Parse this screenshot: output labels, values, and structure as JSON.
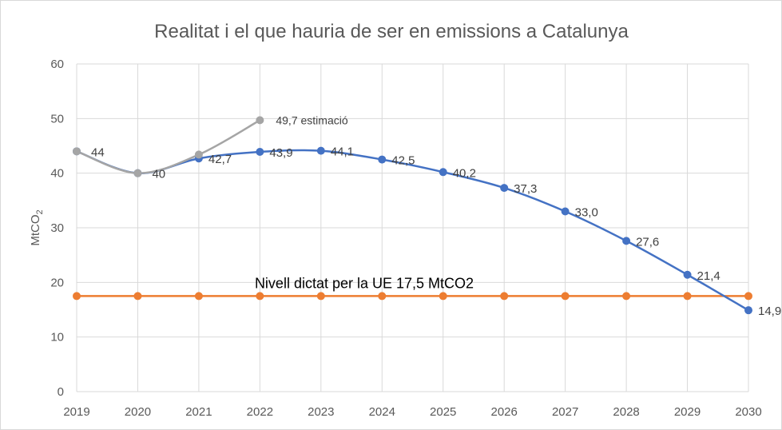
{
  "chart_data": {
    "type": "line",
    "title": "Realitat i el que hauria de ser en emissions a Catalunya",
    "ylabel": "MtCO",
    "ylabel_subscript": "2",
    "xlabel": "",
    "ylim": [
      0,
      60
    ],
    "yticks": [
      0,
      10,
      20,
      30,
      40,
      50,
      60
    ],
    "x": [
      2019,
      2020,
      2021,
      2022,
      2023,
      2024,
      2025,
      2026,
      2027,
      2028,
      2029,
      2030
    ],
    "grid": true,
    "series": [
      {
        "color": "#4472c4",
        "points": [
          {
            "x": 2019,
            "y": 44,
            "label": ""
          },
          {
            "x": 2020,
            "y": 40,
            "label": ""
          },
          {
            "x": 2021,
            "y": 42.7,
            "label": "42,7"
          },
          {
            "x": 2022,
            "y": 43.9,
            "label": "43,9"
          },
          {
            "x": 2023,
            "y": 44.1,
            "label": "44,1"
          },
          {
            "x": 2024,
            "y": 42.5,
            "label": "42,5"
          },
          {
            "x": 2025,
            "y": 40.2,
            "label": "40,2"
          },
          {
            "x": 2026,
            "y": 37.3,
            "label": "37,3"
          },
          {
            "x": 2027,
            "y": 33.0,
            "label": "33,0"
          },
          {
            "x": 2028,
            "y": 27.6,
            "label": "27,6"
          },
          {
            "x": 2029,
            "y": 21.4,
            "label": "21,4"
          },
          {
            "x": 2030,
            "y": 14.9,
            "label": "14,9"
          }
        ]
      },
      {
        "color": "#a5a5a5",
        "points": [
          {
            "x": 2019,
            "y": 44,
            "label": "44"
          },
          {
            "x": 2020,
            "y": 40,
            "label": "40"
          },
          {
            "x": 2021,
            "y": 43.4,
            "label": ""
          },
          {
            "x": 2022,
            "y": 49.7,
            "label": "49,7 estimació"
          }
        ]
      },
      {
        "color": "#ed7d31",
        "points": [
          {
            "x": 2019,
            "y": 17.5
          },
          {
            "x": 2020,
            "y": 17.5
          },
          {
            "x": 2021,
            "y": 17.5
          },
          {
            "x": 2022,
            "y": 17.5
          },
          {
            "x": 2023,
            "y": 17.5
          },
          {
            "x": 2024,
            "y": 17.5
          },
          {
            "x": 2025,
            "y": 17.5
          },
          {
            "x": 2026,
            "y": 17.5
          },
          {
            "x": 2027,
            "y": 17.5
          },
          {
            "x": 2028,
            "y": 17.5
          },
          {
            "x": 2029,
            "y": 17.5
          },
          {
            "x": 2030,
            "y": 17.5
          }
        ]
      }
    ],
    "annotations": [
      {
        "text": "Nivell dictat per la UE 17,5 MtCO2"
      }
    ]
  }
}
